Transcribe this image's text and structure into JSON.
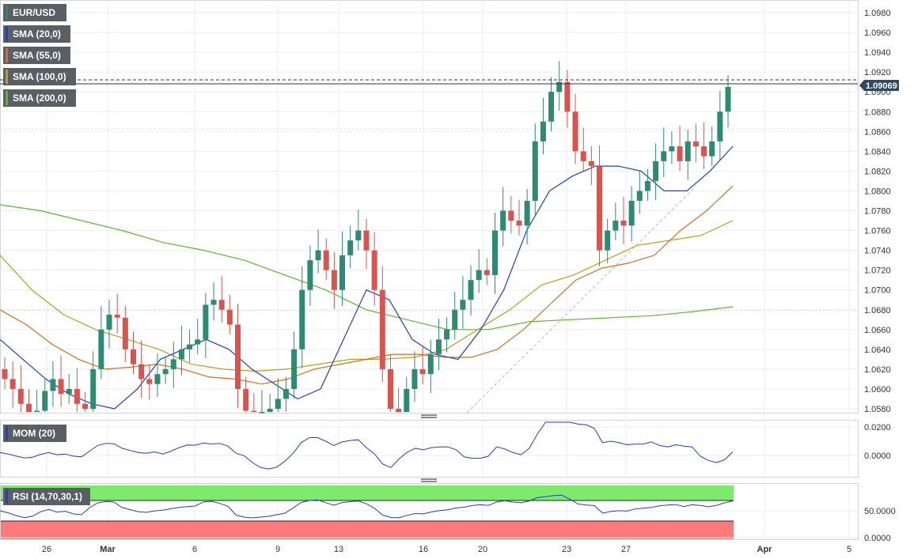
{
  "legend": {
    "symbol": "EUR/USD",
    "sma20": "SMA (20,0)",
    "sma55": "SMA (55,0)",
    "sma100": "SMA (100,0)",
    "sma200": "SMA (200,0)",
    "mom": "MOM (20)",
    "rsi": "RSI (14,70,30,1)"
  },
  "price_badge": "1.09069",
  "colors": {
    "up": "#2e8b73",
    "down": "#d9534f",
    "sma20": "#1f3fcf",
    "sma55": "#e06a20",
    "sma100": "#b5a21a",
    "sma200": "#5cb82a",
    "rsi_over": "#7dea6c",
    "rsi_under": "#ff7b7b",
    "badge": "#2c4a66",
    "legend_bg": "#5a5f66"
  },
  "chart_data": {
    "type": "candlestick",
    "title": "",
    "price_axis": {
      "ylim": [
        1.0575,
        1.0995
      ],
      "ticks": [
        "1.0980",
        "1.0960",
        "1.0940",
        "1.0920",
        "1.0900",
        "1.0880",
        "1.0860",
        "1.0840",
        "1.0820",
        "1.0800",
        "1.0780",
        "1.0760",
        "1.0740",
        "1.0720",
        "1.0700",
        "1.0680",
        "1.0660",
        "1.0640",
        "1.0620",
        "1.0600",
        "1.0580"
      ]
    },
    "x_ticks": [
      "26",
      "Mar",
      "6",
      "9",
      "13",
      "16",
      "20",
      "23",
      "27",
      "Apr",
      "5"
    ],
    "horizontal_lines": {
      "dashed_resistance": 1.0912,
      "last_price": 1.09069,
      "light_dotted_1": 1.0864,
      "light_dotted_2": 1.068
    },
    "candles_close": [
      1.061,
      1.06,
      1.0585,
      1.0572,
      1.0578,
      1.0598,
      1.061,
      1.0595,
      1.06,
      1.0585,
      1.058,
      1.062,
      1.066,
      1.0675,
      1.0672,
      1.064,
      1.0625,
      1.061,
      1.0605,
      1.0615,
      1.062,
      1.063,
      1.064,
      1.0645,
      1.065,
      1.0685,
      1.069,
      1.068,
      1.0665,
      1.06,
      1.0578,
      1.057,
      1.0575,
      1.058,
      1.059,
      1.06,
      1.064,
      1.07,
      1.073,
      1.074,
      1.072,
      1.07,
      1.0735,
      1.075,
      1.076,
      1.074,
      1.07,
      1.062,
      1.058,
      1.0575,
      1.06,
      1.062,
      1.0615,
      1.0635,
      1.065,
      1.066,
      1.068,
      1.069,
      1.071,
      1.072,
      1.0715,
      1.076,
      1.078,
      1.077,
      1.0765,
      1.079,
      1.085,
      1.087,
      1.09,
      1.091,
      1.088,
      1.084,
      1.083,
      1.0825,
      1.074,
      1.076,
      1.077,
      1.0765,
      1.079,
      1.08,
      1.081,
      1.083,
      1.084,
      1.0845,
      1.083,
      1.085,
      1.0845,
      1.0835,
      1.085,
      1.088,
      1.0905
    ],
    "sma_lines": {
      "sma20": [
        1.065,
        1.063,
        1.061,
        1.0595,
        1.0585,
        1.058,
        1.06,
        1.063,
        1.064,
        1.065,
        1.064,
        1.062,
        1.0605,
        1.059,
        1.06,
        1.065,
        1.07,
        1.069,
        1.065,
        1.0635,
        1.063,
        1.066,
        1.07,
        1.076,
        1.08,
        1.0815,
        1.0825,
        1.0825,
        1.082,
        1.08,
        1.08,
        1.082,
        1.0845
      ],
      "sma55": [
        1.068,
        1.0665,
        1.0645,
        1.063,
        1.062,
        1.0622,
        1.0625,
        1.062,
        1.0612,
        1.061,
        1.0605,
        1.061,
        1.062,
        1.0625,
        1.063,
        1.0635,
        1.0635,
        1.0632,
        1.0632,
        1.064,
        1.066,
        1.0685,
        1.071,
        1.0722,
        1.0727,
        1.0735,
        1.076,
        1.078,
        1.0805
      ],
      "sma100": [
        1.0735,
        1.07,
        1.0675,
        1.066,
        1.065,
        1.064,
        1.0625,
        1.062,
        1.0618,
        1.062,
        1.0625,
        1.063,
        1.063,
        1.0632,
        1.064,
        1.066,
        1.068,
        1.0705,
        1.0715,
        1.073,
        1.0745,
        1.075,
        1.0755,
        1.077
      ],
      "sma200": [
        1.0786,
        1.078,
        1.077,
        1.076,
        1.0748,
        1.074,
        1.073,
        1.0715,
        1.07,
        1.068,
        1.067,
        1.066,
        1.066,
        1.0668,
        1.067,
        1.0672,
        1.0674,
        1.0678,
        1.0683
      ]
    },
    "momentum": {
      "ticks": [
        "0.0200",
        "0.0000"
      ],
      "ylim": [
        -0.014,
        0.026
      ]
    },
    "rsi": {
      "ticks": [
        "50.0000",
        "0.0000"
      ],
      "overbought": 70,
      "oversold": 30,
      "ylim": [
        0,
        100
      ]
    }
  }
}
